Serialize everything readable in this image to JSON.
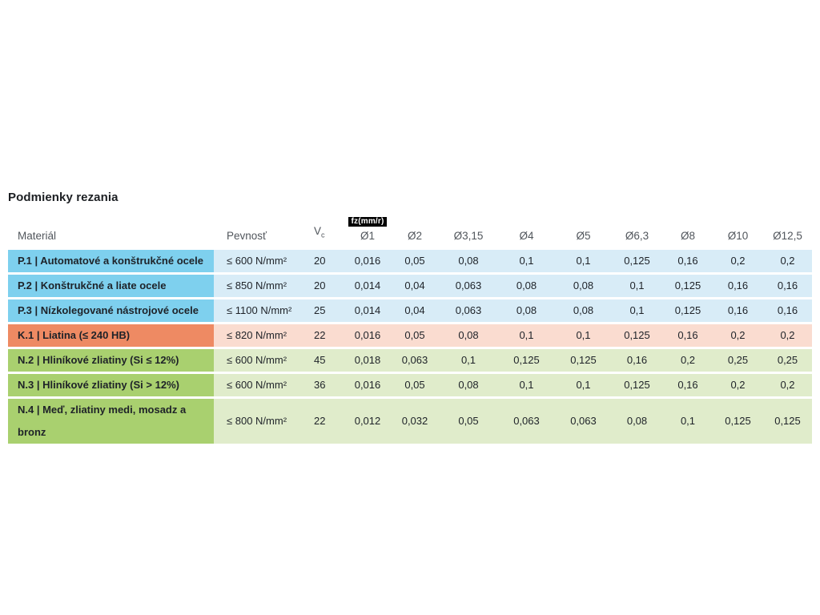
{
  "title": "Podmienky rezania",
  "table": {
    "badge": "fz(mm/r)",
    "headers": {
      "material": "Materiál",
      "strength": "Pevnosť",
      "vc_base": "V",
      "vc_sub": "c",
      "diameters": [
        "Ø1",
        "Ø2",
        "Ø3,15",
        "Ø4",
        "Ø5",
        "Ø6,3",
        "Ø8",
        "Ø10",
        "Ø12,5"
      ]
    },
    "rows": [
      {
        "group": "steel",
        "material": "P.1 | Automatové a konštrukčné ocele",
        "strength": "≤ 600 N/mm²",
        "vc": "20",
        "values": [
          "0,016",
          "0,05",
          "0,08",
          "0,1",
          "0,1",
          "0,125",
          "0,16",
          "0,2",
          "0,2"
        ]
      },
      {
        "group": "steel",
        "material": "P.2 | Konštrukčné a liate ocele",
        "strength": "≤ 850 N/mm²",
        "vc": "20",
        "values": [
          "0,014",
          "0,04",
          "0,063",
          "0,08",
          "0,08",
          "0,1",
          "0,125",
          "0,16",
          "0,16"
        ]
      },
      {
        "group": "steel",
        "material": "P.3 | Nízkolegované nástrojové ocele",
        "strength": "≤ 1100 N/mm²",
        "vc": "25",
        "values": [
          "0,014",
          "0,04",
          "0,063",
          "0,08",
          "0,08",
          "0,1",
          "0,125",
          "0,16",
          "0,16"
        ]
      },
      {
        "group": "cast_iron",
        "material": "K.1 | Liatina (≤ 240 HB)",
        "strength": "≤ 820 N/mm²",
        "vc": "22",
        "values": [
          "0,016",
          "0,05",
          "0,08",
          "0,1",
          "0,1",
          "0,125",
          "0,16",
          "0,2",
          "0,2"
        ]
      },
      {
        "group": "nonferrous",
        "material": "N.2 | Hliníkové zliatiny (Si ≤ 12%)",
        "strength": "≤ 600 N/mm²",
        "vc": "45",
        "values": [
          "0,018",
          "0,063",
          "0,1",
          "0,125",
          "0,125",
          "0,16",
          "0,2",
          "0,25",
          "0,25"
        ]
      },
      {
        "group": "nonferrous",
        "material": "N.3 | Hliníkové zliatiny (Si > 12%)",
        "strength": "≤ 600 N/mm²",
        "vc": "36",
        "values": [
          "0,016",
          "0,05",
          "0,08",
          "0,1",
          "0,1",
          "0,125",
          "0,16",
          "0,2",
          "0,2"
        ]
      },
      {
        "group": "nonferrous",
        "material": "N.4 | Meď, zliatiny medi, mosadz a bronz",
        "strength": "≤ 800 N/mm²",
        "vc": "22",
        "values": [
          "0,012",
          "0,032",
          "0,05",
          "0,063",
          "0,063",
          "0,08",
          "0,1",
          "0,125",
          "0,125"
        ]
      }
    ]
  },
  "colors": {
    "steel_dark": "#7ed0ee",
    "steel_light": "#d8ecf7",
    "cast_iron_dark": "#ee8a63",
    "cast_iron_light": "#fadcd0",
    "nonferrous_dark": "#a9d06f",
    "nonferrous_light": "#e0eccb",
    "badge_bg": "#000000",
    "badge_text": "#ffffff",
    "header_text": "#51565c",
    "body_text": "#1e2228"
  }
}
